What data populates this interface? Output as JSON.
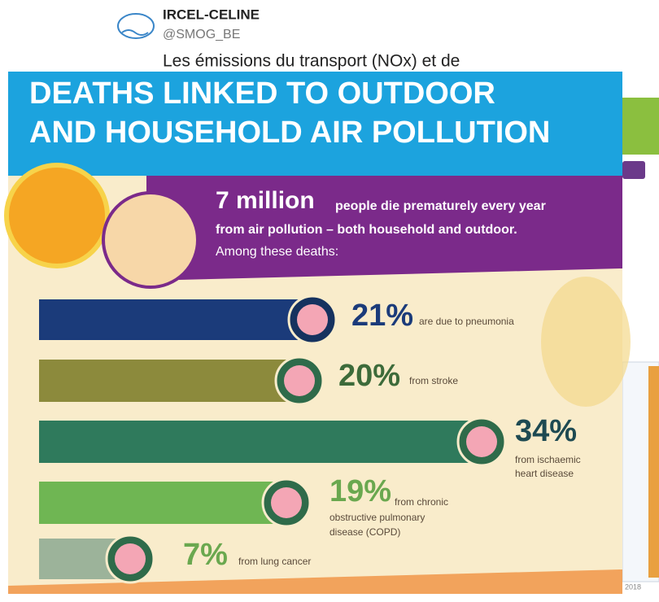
{
  "tweet": {
    "account_name": "IRCEL-CELINE",
    "handle": "@SMOG_BE",
    "text": "Les émissions du transport (NOx) et de"
  },
  "infographic": {
    "title_lines": [
      "DEATHS LINKED TO OUTDOOR",
      "AND HOUSEHOLD AIR POLLUTION"
    ],
    "headline_number": "7 million",
    "headline_lines": [
      "people die prematurely every year",
      "from air pollution – both household and outdoor."
    ],
    "subhead": "Among these deaths:",
    "causes": [
      {
        "value": 21,
        "value_label": "21%",
        "label_lines": [
          "are due to pneumonia"
        ],
        "color": "#1b3b7a"
      },
      {
        "value": 20,
        "value_label": "20%",
        "label_lines": [
          "from stroke"
        ],
        "color": "#8c8a3c"
      },
      {
        "value": 34,
        "value_label": "34%",
        "label_lines": [
          "from ischaemic",
          "heart disease"
        ],
        "color": "#2f7a5c"
      },
      {
        "value": 19,
        "value_label": "19%",
        "label_lines": [
          "from chronic",
          "obstructive pulmonary",
          "disease (COPD)"
        ],
        "color": "#6fb653"
      },
      {
        "value": 7,
        "value_label": "7%",
        "label_lines": [
          "from lung cancer"
        ],
        "color": "#9cb39a"
      }
    ]
  },
  "background": {
    "date_fragment": "2018"
  }
}
